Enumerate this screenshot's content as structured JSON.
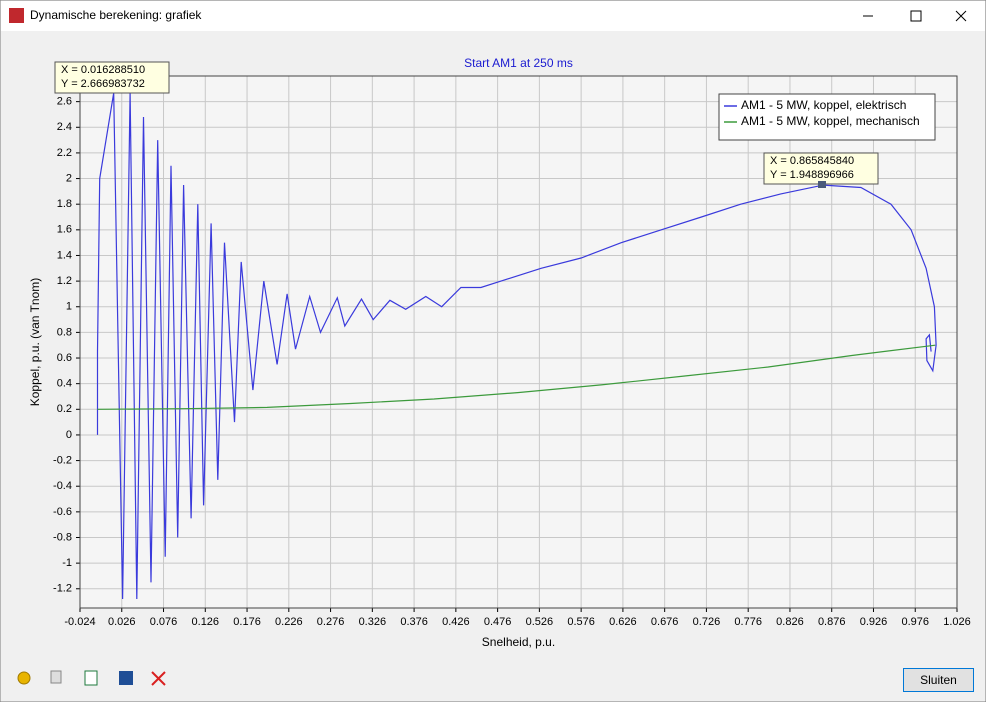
{
  "window": {
    "title": "Dynamische berekening: grafiek"
  },
  "chart_data": {
    "type": "line",
    "title": "Start AM1 at 250 ms",
    "x_label": "Snelheid, p.u.",
    "y_label": "Koppel, p.u. (van Tnom)",
    "xlim": [
      -0.024,
      1.026
    ],
    "ylim": [
      -1.35,
      2.8
    ],
    "xticks": [
      -0.024,
      0.026,
      0.076,
      0.126,
      0.176,
      0.226,
      0.276,
      0.326,
      0.376,
      0.426,
      0.476,
      0.526,
      0.576,
      0.626,
      0.676,
      0.726,
      0.776,
      0.826,
      0.876,
      0.926,
      0.976,
      1.026
    ],
    "yticks": [
      -1.2,
      -1,
      -0.8,
      -0.6,
      -0.4,
      -0.2,
      0,
      0.2,
      0.4,
      0.6,
      0.8,
      1,
      1.2,
      1.4,
      1.6,
      1.8,
      2,
      2.2,
      2.4,
      2.6
    ],
    "grid": true,
    "legend": "upper right",
    "series": [
      {
        "name": "AM1 - 5 MW, koppel, elektrisch",
        "color": "#3a3adc",
        "x": [
          -0.003,
          -0.003,
          -0.0004,
          0.0163,
          0.027,
          0.036,
          0.044,
          0.052,
          0.061,
          0.069,
          0.078,
          0.085,
          0.093,
          0.1,
          0.109,
          0.117,
          0.124,
          0.133,
          0.141,
          0.149,
          0.161,
          0.169,
          0.183,
          0.196,
          0.212,
          0.224,
          0.234,
          0.251,
          0.264,
          0.284,
          0.293,
          0.313,
          0.327,
          0.347,
          0.366,
          0.39,
          0.409,
          0.432,
          0.456,
          0.48,
          0.528,
          0.576,
          0.624,
          0.672,
          0.72,
          0.767,
          0.815,
          0.8658,
          0.911,
          0.947,
          0.971,
          0.989,
          0.999,
          1.001,
          0.997,
          0.99,
          0.989,
          0.993,
          0.995
        ],
        "values": [
          0,
          0.65,
          2.0,
          2.667,
          -1.28,
          2.67,
          -1.28,
          2.48,
          -1.15,
          2.3,
          -0.95,
          2.1,
          -0.8,
          1.95,
          -0.65,
          1.8,
          -0.55,
          1.65,
          -0.35,
          1.5,
          0.1,
          1.35,
          0.35,
          1.2,
          0.55,
          1.1,
          0.67,
          1.08,
          0.8,
          1.07,
          0.85,
          1.06,
          0.9,
          1.05,
          0.98,
          1.08,
          1.0,
          1.15,
          1.15,
          1.2,
          1.3,
          1.38,
          1.5,
          1.6,
          1.7,
          1.8,
          1.88,
          1.949,
          1.93,
          1.8,
          1.6,
          1.3,
          1.0,
          0.7,
          0.5,
          0.58,
          0.75,
          0.78,
          0.65
        ]
      },
      {
        "name": "AM1 - 5 MW, koppel, mechanisch",
        "color": "#3c9a3c",
        "x": [
          -0.003,
          0.1,
          0.2,
          0.3,
          0.4,
          0.5,
          0.6,
          0.7,
          0.8,
          0.9,
          1.0
        ],
        "values": [
          0.2,
          0.205,
          0.215,
          0.245,
          0.28,
          0.33,
          0.39,
          0.46,
          0.53,
          0.62,
          0.7
        ]
      }
    ],
    "annotations": [
      [
        "X = 0.016288510",
        "Y = 2.666983732"
      ],
      [
        "X = 0.865845840",
        "Y = 1.948896966"
      ]
    ]
  },
  "buttons": {
    "close": "Sluiten"
  }
}
